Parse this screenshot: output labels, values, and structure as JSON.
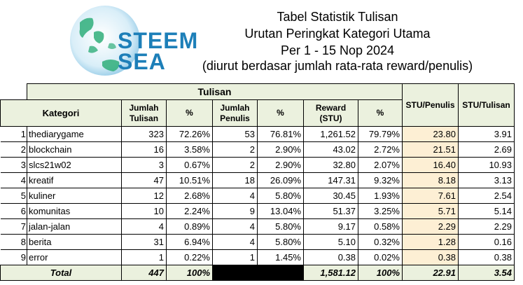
{
  "logo": {
    "line1": "STEEM",
    "line2": "SEA"
  },
  "title": {
    "line1": "Tabel Statistik Tulisan",
    "line2": "Urutan Peringkat Kategori Utama",
    "line3": "Per 1 - 15 Nop 2024",
    "line4": "(diurut berdasar jumlah rata-rata reward/penulis)"
  },
  "headers": {
    "group": "Tulisan",
    "kategori": "Kategori",
    "jumlah_tulisan": [
      "Jumlah",
      "Tulisan"
    ],
    "pct1": "%",
    "jumlah_penulis": [
      "Jumlah",
      "Penulis"
    ],
    "pct2": "%",
    "reward": [
      "Reward",
      "(STU)"
    ],
    "pct3": "%",
    "stu_penulis": "STU/Penulis",
    "stu_tulisan": "STU/Tulisan"
  },
  "rows": [
    {
      "no": "1",
      "kategori": "thediarygame",
      "tulisan": "323",
      "pct_t": "72.26%",
      "penulis": "53",
      "pct_p": "76.81%",
      "reward": "1,261.52",
      "pct_r": "79.79%",
      "stu_penulis": "23.80",
      "stu_tulisan": "3.91"
    },
    {
      "no": "2",
      "kategori": "blockchain",
      "tulisan": "16",
      "pct_t": "3.58%",
      "penulis": "2",
      "pct_p": "2.90%",
      "reward": "43.02",
      "pct_r": "2.72%",
      "stu_penulis": "21.51",
      "stu_tulisan": "2.69"
    },
    {
      "no": "3",
      "kategori": "slcs21w02",
      "tulisan": "3",
      "pct_t": "0.67%",
      "penulis": "2",
      "pct_p": "2.90%",
      "reward": "32.80",
      "pct_r": "2.07%",
      "stu_penulis": "16.40",
      "stu_tulisan": "10.93"
    },
    {
      "no": "4",
      "kategori": "kreatif",
      "tulisan": "47",
      "pct_t": "10.51%",
      "penulis": "18",
      "pct_p": "26.09%",
      "reward": "147.31",
      "pct_r": "9.32%",
      "stu_penulis": "8.18",
      "stu_tulisan": "3.13"
    },
    {
      "no": "5",
      "kategori": "kuliner",
      "tulisan": "12",
      "pct_t": "2.68%",
      "penulis": "4",
      "pct_p": "5.80%",
      "reward": "30.45",
      "pct_r": "1.93%",
      "stu_penulis": "7.61",
      "stu_tulisan": "2.54"
    },
    {
      "no": "6",
      "kategori": "komunitas",
      "tulisan": "10",
      "pct_t": "2.24%",
      "penulis": "9",
      "pct_p": "13.04%",
      "reward": "51.37",
      "pct_r": "3.25%",
      "stu_penulis": "5.71",
      "stu_tulisan": "5.14"
    },
    {
      "no": "7",
      "kategori": "jalan-jalan",
      "tulisan": "4",
      "pct_t": "0.89%",
      "penulis": "4",
      "pct_p": "5.80%",
      "reward": "9.17",
      "pct_r": "0.58%",
      "stu_penulis": "2.29",
      "stu_tulisan": "2.29"
    },
    {
      "no": "8",
      "kategori": "berita",
      "tulisan": "31",
      "pct_t": "6.94%",
      "penulis": "4",
      "pct_p": "5.80%",
      "reward": "5.10",
      "pct_r": "0.32%",
      "stu_penulis": "1.28",
      "stu_tulisan": "0.16"
    },
    {
      "no": "9",
      "kategori": "error",
      "tulisan": "1",
      "pct_t": "0.22%",
      "penulis": "1",
      "pct_p": "1.45%",
      "reward": "0.38",
      "pct_r": "0.02%",
      "stu_penulis": "0.38",
      "stu_tulisan": "0.38"
    }
  ],
  "total": {
    "label": "Total",
    "tulisan": "447",
    "pct_t": "100%",
    "reward": "1,581.12",
    "pct_r": "100%",
    "stu_penulis": "22.91",
    "stu_tulisan": "3.54"
  },
  "colors": {
    "header_bg": "#ebf1de",
    "highlight_bg": "#fdefd4",
    "logo_blue": "#1d7fb8",
    "logo_land": "#2fae7a"
  }
}
